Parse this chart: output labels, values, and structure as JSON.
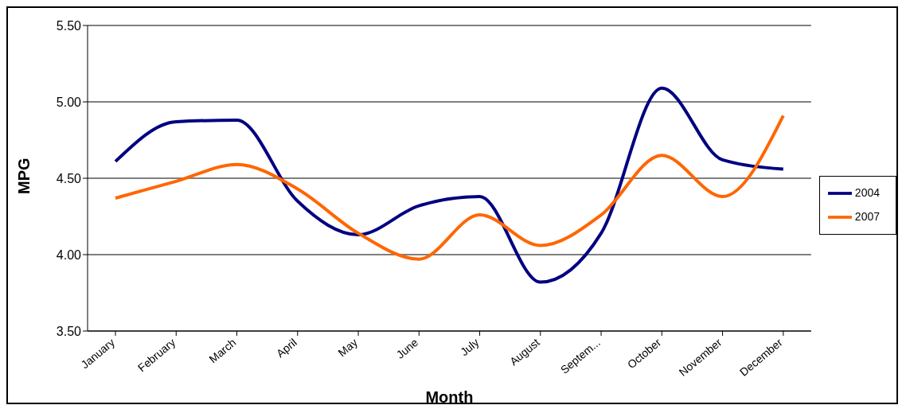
{
  "chart_data": {
    "type": "line",
    "xlabel": "Month",
    "ylabel": "MPG",
    "categories": [
      "January",
      "February",
      "March",
      "April",
      "May",
      "June",
      "July",
      "August",
      "Septem...",
      "October",
      "November",
      "December"
    ],
    "series": [
      {
        "name": "2004",
        "color": "#000080",
        "values": [
          4.61,
          4.87,
          4.88,
          4.35,
          4.13,
          4.32,
          4.38,
          3.82,
          4.14,
          5.09,
          4.62,
          4.56
        ]
      },
      {
        "name": "2007",
        "color": "#ff6600",
        "values": [
          4.37,
          4.48,
          4.59,
          4.43,
          4.14,
          3.97,
          4.26,
          4.06,
          4.26,
          4.65,
          4.38,
          4.91
        ]
      }
    ],
    "ylim": [
      3.5,
      5.5
    ],
    "yticks": [
      {
        "value": 3.5,
        "label": "3.50"
      },
      {
        "value": 4,
        "label": "4.00"
      },
      {
        "value": 4.5,
        "label": "4.50"
      },
      {
        "value": 5,
        "label": "5.00"
      },
      {
        "value": 5.5,
        "label": "5.50"
      }
    ],
    "grid": "y",
    "legend": "right",
    "marker": "none",
    "line_style": "solid"
  }
}
